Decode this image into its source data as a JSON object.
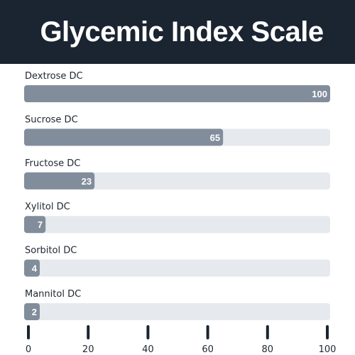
{
  "chart_data": {
    "type": "bar",
    "orientation": "horizontal",
    "title": "Glycemic Index Scale",
    "categories": [
      "Dextrose DC",
      "Sucrose DC",
      "Fructose DC",
      "Xylitol DC",
      "Sorbitol DC",
      "Mannitol DC"
    ],
    "values": [
      100,
      65,
      23,
      7,
      4,
      2
    ],
    "xlim": [
      0,
      100
    ],
    "xticks": [
      0,
      20,
      40,
      60,
      80,
      100
    ],
    "grid": false,
    "data_labels": true,
    "colors": {
      "header": "#1b2431",
      "bar": "#818d9b",
      "track": "#e6e9ee",
      "text": "#1f2630",
      "tick": "#1b2431"
    }
  }
}
